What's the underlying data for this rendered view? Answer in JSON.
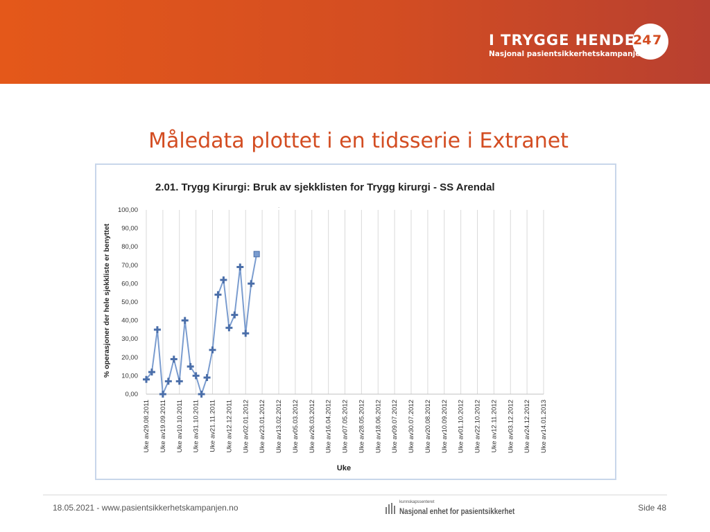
{
  "header": {
    "brand_title": "I TRYGGE HENDER",
    "brand_subtitle": "Nasjonal pasientsikkerhetskampanje",
    "brand_badge_hours": "24",
    "brand_badge_days": "7",
    "colors": {
      "banner_start": "#e4581a",
      "banner_end": "#b84030"
    }
  },
  "slide": {
    "title": "Måledata plottet i en tidsserie i Extranet"
  },
  "chart_data": {
    "type": "line",
    "title": "2.01. Trygg Kirurgi: Bruk av sjekklisten for Trygg kirurgi - SS Arendal",
    "xlabel": "Uke",
    "ylabel": "% operasjoner der hele sjekkliste er benyttet",
    "ylim": [
      0,
      100
    ],
    "y_ticks": [
      "0,00",
      "10,00",
      "20,00",
      "30,00",
      "40,00",
      "50,00",
      "60,00",
      "70,00",
      "80,00",
      "90,00",
      "100,00"
    ],
    "grid": true,
    "x_tick_labels": [
      "Uke av29.08.2011",
      "Uke av19.09.2011",
      "Uke av10.10.2011",
      "Uke av31.10.2011",
      "Uke av21.11.2011",
      "Uke av12.12.2011",
      "Uke av02.01.2012",
      "Uke av23.01.2012",
      "Uke av13.02.2012",
      "Uke av05.03.2012",
      "Uke av26.03.2012",
      "Uke av16.04.2012",
      "Uke av07.05.2012",
      "Uke av28.05.2012",
      "Uke av18.06.2012",
      "Uke av09.07.2012",
      "Uke av30.07.2012",
      "Uke av20.08.2012",
      "Uke av10.09.2012",
      "Uke av01.10.2012",
      "Uke av22.10.2012",
      "Uke av12.11.2012",
      "Uke av03.12.2012",
      "Uke av24.12.2012",
      "Uke av14.01.2013"
    ],
    "week_step_per_label": 3,
    "series": [
      {
        "color": "#7a9ccf",
        "marker_color": "#4a6ea9",
        "points": [
          {
            "x": "29.08.2011",
            "y": 8
          },
          {
            "x": "05.09.2011",
            "y": 12
          },
          {
            "x": "12.09.2011",
            "y": 35
          },
          {
            "x": "19.09.2011",
            "y": 0
          },
          {
            "x": "26.09.2011",
            "y": 7
          },
          {
            "x": "03.10.2011",
            "y": 19
          },
          {
            "x": "10.10.2011",
            "y": 7
          },
          {
            "x": "17.10.2011",
            "y": 40
          },
          {
            "x": "24.10.2011",
            "y": 15
          },
          {
            "x": "31.10.2011",
            "y": 10
          },
          {
            "x": "07.11.2011",
            "y": 0
          },
          {
            "x": "14.11.2011",
            "y": 9
          },
          {
            "x": "21.11.2011",
            "y": 24
          },
          {
            "x": "28.11.2011",
            "y": 54
          },
          {
            "x": "05.12.2011",
            "y": 62
          },
          {
            "x": "12.12.2011",
            "y": 36
          },
          {
            "x": "19.12.2011",
            "y": 43
          },
          {
            "x": "26.12.2011",
            "y": 69
          },
          {
            "x": "02.01.2012",
            "y": 33
          },
          {
            "x": "09.01.2012",
            "y": 60
          },
          {
            "x": "16.01.2012",
            "y": 76
          }
        ]
      }
    ]
  },
  "footer": {
    "left_text": "18.05.2021 - www.pasientsikkerhetskampanjen.no",
    "org_small": "kunnskapssenteret",
    "org_name": "Nasjonal enhet for pasientsikkerhet",
    "page_label": "Side 48"
  }
}
